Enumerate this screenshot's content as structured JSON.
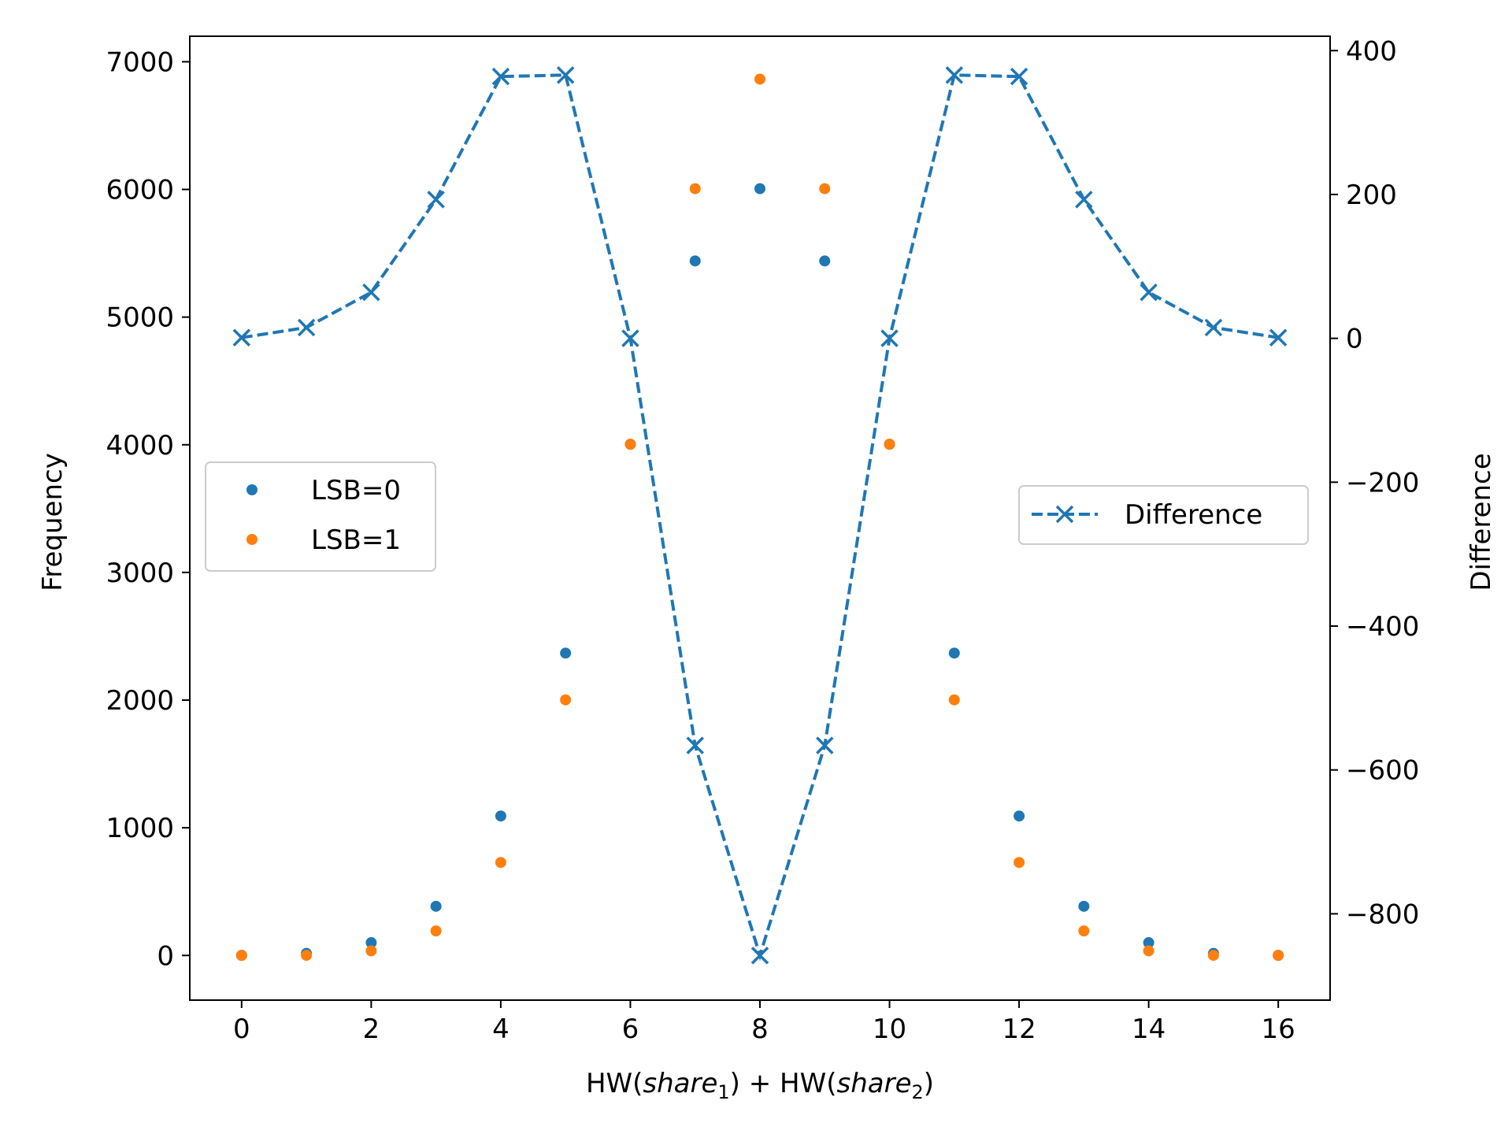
{
  "chart_data": {
    "type": "scatter",
    "x": [
      0,
      1,
      2,
      3,
      4,
      5,
      6,
      7,
      8,
      9,
      10,
      11,
      12,
      13,
      14,
      15,
      16
    ],
    "xlabel_parts": [
      "HW(",
      "share",
      "1",
      ") + HW(",
      "share",
      "2",
      ")"
    ],
    "ylabel": "Frequency",
    "y2label": "Difference",
    "xlim": [
      -0.8,
      16.8
    ],
    "ylim": [
      -350,
      7200
    ],
    "y2lim": [
      -920,
      420
    ],
    "xticks": [
      0,
      2,
      4,
      6,
      8,
      10,
      12,
      14,
      16
    ],
    "xtick_labels": [
      "0",
      "2",
      "4",
      "6",
      "8",
      "10",
      "12",
      "14",
      "16"
    ],
    "yticks": [
      0,
      1000,
      2000,
      3000,
      4000,
      5000,
      6000,
      7000
    ],
    "ytick_labels": [
      "0",
      "1000",
      "2000",
      "3000",
      "4000",
      "5000",
      "6000",
      "7000"
    ],
    "y2ticks": [
      -800,
      -600,
      -400,
      -200,
      0,
      200,
      400
    ],
    "y2tick_labels": [
      "−800",
      "−600",
      "−400",
      "−200",
      "0",
      "200",
      "400"
    ],
    "grid": false,
    "series": [
      {
        "name": "LSB=0",
        "kind": "scatter",
        "axis": "left",
        "color": "#1f77b4",
        "values": [
          1,
          16,
          100,
          385,
          1092,
          2368,
          4004,
          5440,
          6006,
          5440,
          4004,
          2368,
          1092,
          385,
          100,
          16,
          1
        ]
      },
      {
        "name": "LSB=1",
        "kind": "scatter",
        "axis": "left",
        "color": "#ff7f0e",
        "values": [
          0,
          1,
          36,
          192,
          728,
          2002,
          4004,
          6006,
          6864,
          6006,
          4004,
          2002,
          728,
          192,
          36,
          1,
          0
        ]
      },
      {
        "name": "Difference",
        "kind": "line",
        "axis": "right",
        "color": "#1f77b4",
        "linestyle": "dashed",
        "marker": "x",
        "values": [
          1,
          15,
          64,
          193,
          364,
          366,
          0,
          -566,
          -858,
          -566,
          0,
          366,
          364,
          193,
          64,
          15,
          1
        ]
      }
    ],
    "legends": [
      {
        "placement": "center-left",
        "entries": [
          "LSB=0",
          "LSB=1"
        ]
      },
      {
        "placement": "center-right",
        "entries": [
          "Difference"
        ]
      }
    ]
  }
}
